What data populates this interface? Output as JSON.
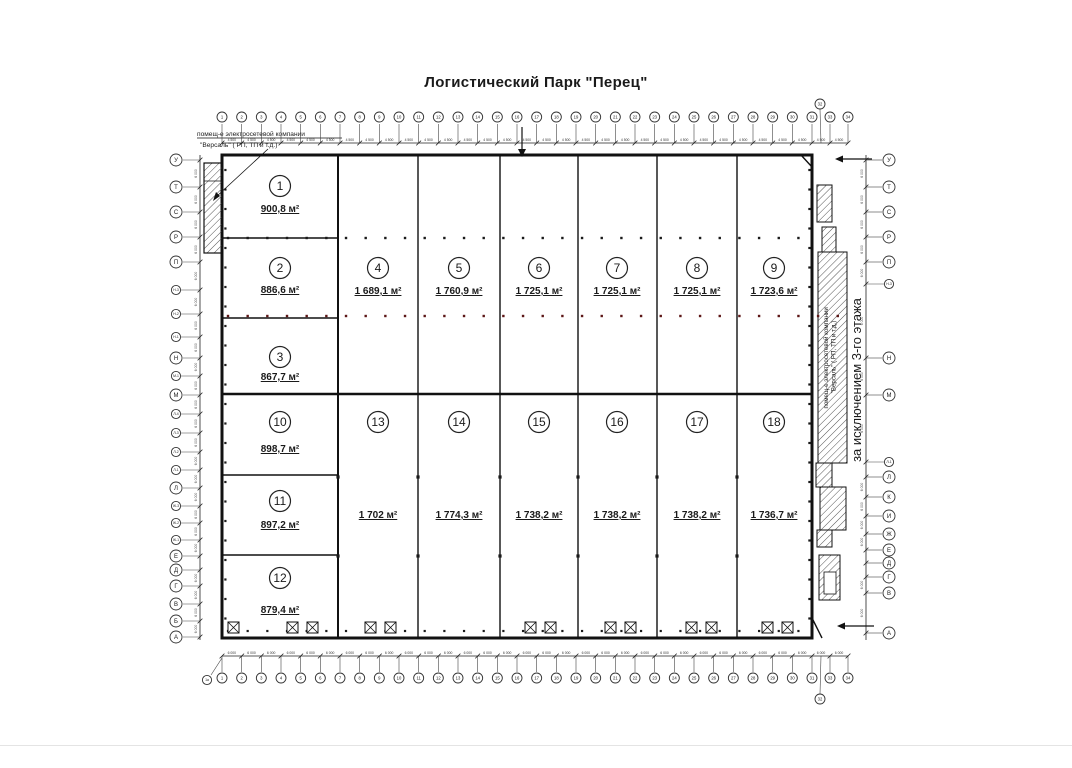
{
  "title": "Логистический Парк \"Перец\"",
  "labels": {
    "electro1": "помещ-е электросетевой компании",
    "electro2": "\"Версаль\" ( РП, ТП и т.д.)",
    "hatch1": "помещ-е электросетевой компании",
    "hatch2": "\"Версаль\" ( РП, ТП и т.д.)",
    "note": "за исключением 3-го этажа"
  },
  "rooms": [
    {
      "n": "1",
      "area": "900,8 м²"
    },
    {
      "n": "2",
      "area": "886,6 м²"
    },
    {
      "n": "3",
      "area": "867,7 м²"
    },
    {
      "n": "4",
      "area": "1 689,1 м²"
    },
    {
      "n": "5",
      "area": "1 760,9 м²"
    },
    {
      "n": "6",
      "area": "1 725,1 м²"
    },
    {
      "n": "7",
      "area": "1 725,1 м²"
    },
    {
      "n": "8",
      "area": "1 725,1 м²"
    },
    {
      "n": "9",
      "area": "1 723,6 м²"
    },
    {
      "n": "10",
      "area": "898,7 м²"
    },
    {
      "n": "11",
      "area": "897,2 м²"
    },
    {
      "n": "12",
      "area": "879,4 м²"
    },
    {
      "n": "13",
      "area": "1 702 м²"
    },
    {
      "n": "14",
      "area": "1 774,3 м²"
    },
    {
      "n": "15",
      "area": "1 738,2 м²"
    },
    {
      "n": "16",
      "area": "1 738,2 м²"
    },
    {
      "n": "17",
      "area": "1 738,2 м²"
    },
    {
      "n": "18",
      "area": "1 736,7 м²"
    }
  ],
  "axes": {
    "horizontal": [
      "1",
      "2",
      "3",
      "4",
      "5",
      "6",
      "7",
      "8",
      "9",
      "10",
      "11",
      "12",
      "13",
      "14",
      "15",
      "16",
      "17",
      "18",
      "19",
      "20",
      "21",
      "22",
      "23",
      "24",
      "25",
      "26",
      "27",
      "28",
      "29",
      "30",
      "31",
      "33",
      "34"
    ],
    "offset_label": "32",
    "corner_label": "1а",
    "left": [
      "У",
      "Т",
      "С",
      "Р",
      "П",
      "Н-3",
      "Н-2",
      "Н-1",
      "Н",
      "М-1",
      "М",
      "Л-4",
      "Л-3",
      "Л-2",
      "Л-1",
      "Л",
      "Ж-3",
      "Ж-2",
      "Ж-1",
      "Е",
      "Д",
      "Г",
      "В",
      "Б",
      "А"
    ],
    "right": [
      "У",
      "Т",
      "С",
      "Р",
      "П",
      "Н-3",
      "Н",
      "М",
      "Л-1",
      "Л",
      "К",
      "И",
      "Ж",
      "Е",
      "Д",
      "Г",
      "В",
      "А"
    ]
  },
  "dims": {
    "top": "4 500",
    "bottom": "6 000",
    "side": "6 000"
  }
}
